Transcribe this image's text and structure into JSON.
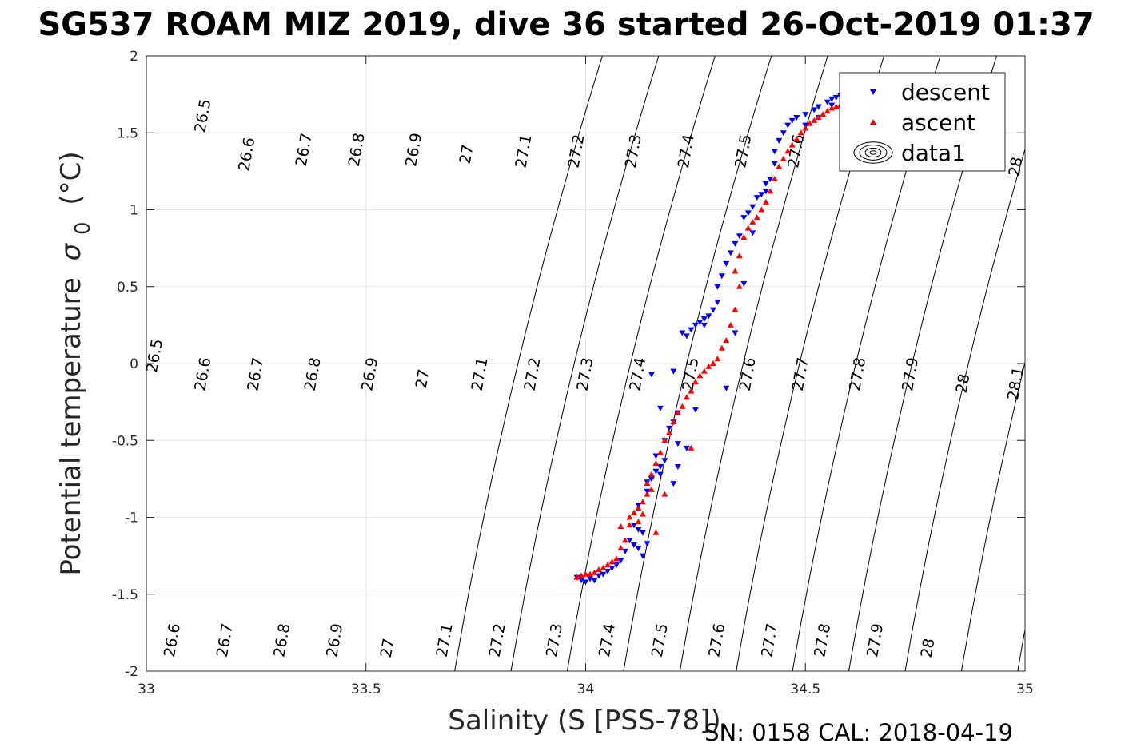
{
  "chart_data": {
    "type": "scatter",
    "title": "SG537 ROAM MIZ 2019, dive 36 started 26-Oct-2019 01:37",
    "xlabel": "Salinity (S [PSS-78])",
    "ylabel": "Potential temperature",
    "ylabel_symbol": "σ",
    "ylabel_subscript": "0",
    "ylabel_unit": "(°C)",
    "footer": "SN: 0158  CAL: 2018-04-19",
    "xlim": [
      33,
      35
    ],
    "ylim": [
      -2,
      2
    ],
    "xticks": [
      33,
      33.5,
      34,
      34.5,
      35
    ],
    "xtick_labels": [
      "33",
      "33.5",
      "34",
      "34.5",
      "35"
    ],
    "yticks": [
      2,
      1.5,
      1,
      0.5,
      0,
      -0.5,
      -1,
      -1.5,
      -2
    ],
    "ytick_labels": [
      "2",
      "1.5",
      "1",
      "0.5",
      "0",
      "-0.5",
      "-1",
      "-1.5",
      "-2"
    ],
    "grid": true,
    "legend_position": "top-right",
    "legend": [
      "descent",
      "ascent",
      "data1"
    ],
    "colors": {
      "descent": "#0000ff",
      "ascent": "#ff0000",
      "contour": "#000000",
      "grid": "#e6e6e6"
    },
    "contour_labels": [
      {
        "text": "26.5",
        "s": 33.13,
        "t": 1.61
      },
      {
        "text": "26.6",
        "s": 33.23,
        "t": 1.36
      },
      {
        "text": "26.7",
        "s": 33.36,
        "t": 1.39
      },
      {
        "text": "26.8",
        "s": 33.48,
        "t": 1.39
      },
      {
        "text": "26.9",
        "s": 33.61,
        "t": 1.39
      },
      {
        "text": "27",
        "s": 33.73,
        "t": 1.36
      },
      {
        "text": "27.1",
        "s": 33.86,
        "t": 1.38
      },
      {
        "text": "27.2",
        "s": 33.98,
        "t": 1.38
      },
      {
        "text": "27.3",
        "s": 34.11,
        "t": 1.38
      },
      {
        "text": "27.4",
        "s": 34.23,
        "t": 1.38
      },
      {
        "text": "27.5",
        "s": 34.36,
        "t": 1.38
      },
      {
        "text": "27.6",
        "s": 34.48,
        "t": 1.38
      },
      {
        "text": "28",
        "s": 34.98,
        "t": 1.28
      },
      {
        "text": "26.5",
        "s": 33.02,
        "t": 0.05
      },
      {
        "text": "26.6",
        "s": 33.13,
        "t": -0.07
      },
      {
        "text": "26.7",
        "s": 33.25,
        "t": -0.07
      },
      {
        "text": "26.8",
        "s": 33.38,
        "t": -0.07
      },
      {
        "text": "26.9",
        "s": 33.51,
        "t": -0.07
      },
      {
        "text": "27",
        "s": 33.63,
        "t": -0.1
      },
      {
        "text": "27.1",
        "s": 33.76,
        "t": -0.07
      },
      {
        "text": "27.2",
        "s": 33.88,
        "t": -0.07
      },
      {
        "text": "27.3",
        "s": 34.0,
        "t": -0.07
      },
      {
        "text": "27.4",
        "s": 34.12,
        "t": -0.07
      },
      {
        "text": "27.5",
        "s": 34.24,
        "t": -0.07
      },
      {
        "text": "27.6",
        "s": 34.37,
        "t": -0.07
      },
      {
        "text": "27.7",
        "s": 34.49,
        "t": -0.07
      },
      {
        "text": "27.8",
        "s": 34.62,
        "t": -0.07
      },
      {
        "text": "27.9",
        "s": 34.74,
        "t": -0.07
      },
      {
        "text": "28",
        "s": 34.86,
        "t": -0.13
      },
      {
        "text": "28.1",
        "s": 34.98,
        "t": -0.13
      },
      {
        "text": "26.6",
        "s": 33.06,
        "t": -1.8
      },
      {
        "text": "26.7",
        "s": 33.18,
        "t": -1.8
      },
      {
        "text": "26.8",
        "s": 33.31,
        "t": -1.8
      },
      {
        "text": "26.9",
        "s": 33.43,
        "t": -1.8
      },
      {
        "text": "27",
        "s": 33.55,
        "t": -1.85
      },
      {
        "text": "27.1",
        "s": 33.68,
        "t": -1.8
      },
      {
        "text": "27.2",
        "s": 33.8,
        "t": -1.8
      },
      {
        "text": "27.3",
        "s": 33.93,
        "t": -1.8
      },
      {
        "text": "27.4",
        "s": 34.05,
        "t": -1.8
      },
      {
        "text": "27.5",
        "s": 34.17,
        "t": -1.8
      },
      {
        "text": "27.6",
        "s": 34.3,
        "t": -1.8
      },
      {
        "text": "27.7",
        "s": 34.42,
        "t": -1.8
      },
      {
        "text": "27.8",
        "s": 34.54,
        "t": -1.8
      },
      {
        "text": "27.9",
        "s": 34.66,
        "t": -1.8
      },
      {
        "text": "28",
        "s": 34.78,
        "t": -1.85
      }
    ],
    "series": [
      {
        "name": "descent",
        "marker": "triangle-down",
        "points": [
          [
            33.98,
            -1.39
          ],
          [
            33.99,
            -1.41
          ],
          [
            34.0,
            -1.42
          ],
          [
            34.01,
            -1.4
          ],
          [
            34.02,
            -1.41
          ],
          [
            34.03,
            -1.38
          ],
          [
            34.04,
            -1.37
          ],
          [
            34.05,
            -1.35
          ],
          [
            34.06,
            -1.33
          ],
          [
            34.07,
            -1.31
          ],
          [
            34.08,
            -1.28
          ],
          [
            34.09,
            -1.22
          ],
          [
            34.1,
            -1.15
          ],
          [
            34.11,
            -1.18
          ],
          [
            34.12,
            -1.2
          ],
          [
            34.13,
            -1.25
          ],
          [
            34.14,
            -1.17
          ],
          [
            34.13,
            -1.1
          ],
          [
            34.12,
            -1.08
          ],
          [
            34.11,
            -1.05
          ],
          [
            34.12,
            -0.92
          ],
          [
            34.14,
            -0.83
          ],
          [
            34.15,
            -0.75
          ],
          [
            34.16,
            -0.7
          ],
          [
            34.17,
            -0.67
          ],
          [
            34.18,
            -0.63
          ],
          [
            34.17,
            -0.72
          ],
          [
            34.16,
            -0.6
          ],
          [
            34.18,
            -0.5
          ],
          [
            34.19,
            -0.42
          ],
          [
            34.2,
            -0.38
          ],
          [
            34.21,
            -0.32
          ],
          [
            34.15,
            -0.07
          ],
          [
            34.2,
            -0.05
          ],
          [
            34.17,
            -0.29
          ],
          [
            34.25,
            -0.3
          ],
          [
            34.21,
            -0.52
          ],
          [
            34.23,
            -0.55
          ],
          [
            34.2,
            -0.78
          ],
          [
            34.21,
            -0.67
          ],
          [
            34.14,
            -0.77
          ],
          [
            34.22,
            0.2
          ],
          [
            34.23,
            0.18
          ],
          [
            34.24,
            0.22
          ],
          [
            34.25,
            0.25
          ],
          [
            34.26,
            0.27
          ],
          [
            34.27,
            0.29
          ],
          [
            34.28,
            0.31
          ],
          [
            34.29,
            0.35
          ],
          [
            34.3,
            0.4
          ],
          [
            34.3,
            0.5
          ],
          [
            34.31,
            0.57
          ],
          [
            34.32,
            0.65
          ],
          [
            34.33,
            0.72
          ],
          [
            34.34,
            0.78
          ],
          [
            34.35,
            0.83
          ],
          [
            34.36,
            0.95
          ],
          [
            34.37,
            0.98
          ],
          [
            34.38,
            1.02
          ],
          [
            34.39,
            1.08
          ],
          [
            34.4,
            1.1
          ],
          [
            34.41,
            1.12
          ],
          [
            34.42,
            1.2
          ],
          [
            34.43,
            1.3
          ],
          [
            34.44,
            1.45
          ],
          [
            34.45,
            1.5
          ],
          [
            34.46,
            1.55
          ],
          [
            34.47,
            1.58
          ],
          [
            34.48,
            1.6
          ],
          [
            34.5,
            1.62
          ],
          [
            34.52,
            1.65
          ],
          [
            34.53,
            1.67
          ],
          [
            34.55,
            1.7
          ],
          [
            34.56,
            1.72
          ],
          [
            34.57,
            1.73
          ],
          [
            34.58,
            1.74
          ],
          [
            34.56,
            1.68
          ],
          [
            34.53,
            1.6
          ],
          [
            34.5,
            1.55
          ],
          [
            34.43,
            1.38
          ],
          [
            34.41,
            1.17
          ],
          [
            34.38,
            0.85
          ],
          [
            34.36,
            0.52
          ],
          [
            34.34,
            0.2
          ],
          [
            34.32,
            -0.16
          ],
          [
            34.27,
            0.25
          ]
        ]
      },
      {
        "name": "ascent",
        "marker": "triangle-up",
        "points": [
          [
            33.98,
            -1.39
          ],
          [
            33.99,
            -1.38
          ],
          [
            34.0,
            -1.37
          ],
          [
            34.01,
            -1.37
          ],
          [
            34.02,
            -1.36
          ],
          [
            34.03,
            -1.34
          ],
          [
            34.04,
            -1.33
          ],
          [
            34.05,
            -1.31
          ],
          [
            34.06,
            -1.29
          ],
          [
            34.07,
            -1.27
          ],
          [
            34.08,
            -1.2
          ],
          [
            34.09,
            -1.15
          ],
          [
            34.08,
            -1.06
          ],
          [
            34.1,
            -1.0
          ],
          [
            34.11,
            -0.97
          ],
          [
            34.12,
            -0.94
          ],
          [
            34.13,
            -0.9
          ],
          [
            34.14,
            -0.85
          ],
          [
            34.15,
            -0.82
          ],
          [
            34.14,
            -0.78
          ],
          [
            34.15,
            -0.72
          ],
          [
            34.16,
            -0.65
          ],
          [
            34.17,
            -0.58
          ],
          [
            34.18,
            -0.5
          ],
          [
            34.19,
            -0.45
          ],
          [
            34.2,
            -0.38
          ],
          [
            34.21,
            -0.32
          ],
          [
            34.22,
            -0.28
          ],
          [
            34.23,
            -0.22
          ],
          [
            34.24,
            -0.18
          ],
          [
            34.25,
            -0.12
          ],
          [
            34.26,
            -0.08
          ],
          [
            34.27,
            -0.05
          ],
          [
            34.28,
            -0.02
          ],
          [
            34.29,
            0.0
          ],
          [
            34.3,
            0.03
          ],
          [
            34.31,
            0.1
          ],
          [
            34.32,
            0.15
          ],
          [
            34.33,
            0.25
          ],
          [
            34.34,
            0.35
          ],
          [
            34.35,
            0.5
          ],
          [
            34.34,
            0.6
          ],
          [
            34.35,
            0.7
          ],
          [
            34.36,
            0.82
          ],
          [
            34.37,
            0.88
          ],
          [
            34.38,
            0.92
          ],
          [
            34.39,
            0.95
          ],
          [
            34.4,
            1.0
          ],
          [
            34.41,
            1.05
          ],
          [
            34.42,
            1.12
          ],
          [
            34.43,
            1.2
          ],
          [
            34.44,
            1.28
          ],
          [
            34.45,
            1.33
          ],
          [
            34.46,
            1.38
          ],
          [
            34.47,
            1.42
          ],
          [
            34.48,
            1.46
          ],
          [
            34.49,
            1.5
          ],
          [
            34.5,
            1.53
          ],
          [
            34.51,
            1.56
          ],
          [
            34.52,
            1.58
          ],
          [
            34.53,
            1.6
          ],
          [
            34.54,
            1.62
          ],
          [
            34.55,
            1.64
          ],
          [
            34.56,
            1.66
          ],
          [
            34.57,
            1.67
          ],
          [
            34.58,
            1.68
          ],
          [
            34.59,
            1.7
          ],
          [
            34.6,
            1.72
          ],
          [
            34.24,
            -0.55
          ],
          [
            34.18,
            -0.85
          ],
          [
            34.13,
            -0.98
          ],
          [
            34.16,
            -1.1
          ],
          [
            34.12,
            -1.03
          ],
          [
            34.1,
            -1.05
          ]
        ]
      }
    ]
  }
}
